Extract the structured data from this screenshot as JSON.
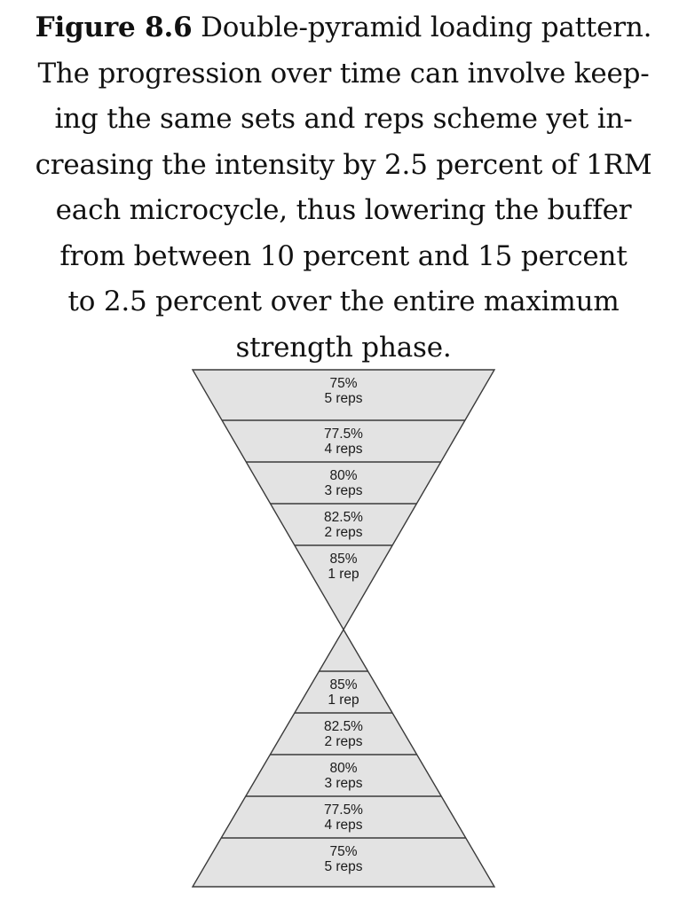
{
  "caption": {
    "figure_label": "Figure 8.6",
    "lines": [
      "Double-pyramid loading pattern.",
      "The progression over time can involve keep-",
      "ing the same sets and reps scheme yet in-",
      "creasing the intensity by 2.5 percent of 1RM",
      "each microcycle, thus lowering the buffer",
      "from between 10 percent and 15 percent",
      "to 2.5 percent over the entire maximum",
      "strength phase."
    ]
  },
  "diagram": {
    "fill_color": "#e3e3e3",
    "stroke_color": "#3a3a3a",
    "top_pyramid": [
      {
        "intensity": "75%",
        "reps": "5 reps"
      },
      {
        "intensity": "77.5%",
        "reps": "4 reps"
      },
      {
        "intensity": "80%",
        "reps": "3 reps"
      },
      {
        "intensity": "82.5%",
        "reps": "2 reps"
      },
      {
        "intensity": "85%",
        "reps": "1 rep"
      }
    ],
    "bottom_pyramid": [
      {
        "intensity": "85%",
        "reps": "1 rep"
      },
      {
        "intensity": "82.5%",
        "reps": "2 reps"
      },
      {
        "intensity": "80%",
        "reps": "3 reps"
      },
      {
        "intensity": "77.5%",
        "reps": "4 reps"
      },
      {
        "intensity": "75%",
        "reps": "5 reps"
      }
    ]
  }
}
